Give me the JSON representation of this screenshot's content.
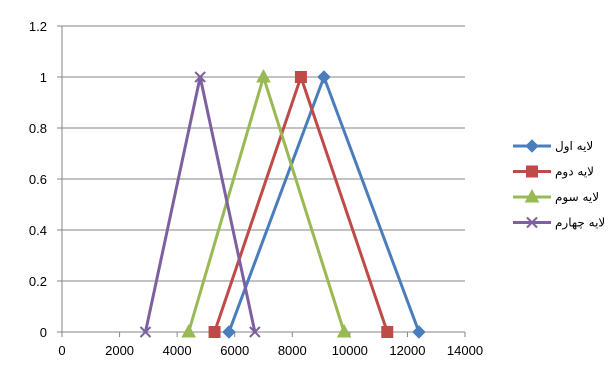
{
  "chart_data": {
    "type": "line",
    "title": "",
    "xlabel": "",
    "ylabel": "",
    "xlim": [
      0,
      14000
    ],
    "ylim": [
      0,
      1.2
    ],
    "x_ticks": [
      "0",
      "2000",
      "4000",
      "6000",
      "8000",
      "10000",
      "12000",
      "14000"
    ],
    "y_ticks": [
      "0",
      "0.2",
      "0.4",
      "0.6",
      "0.8",
      "1",
      "1.2"
    ],
    "grid": "horizontal",
    "legend_position": "right",
    "series": [
      {
        "name": "لایه اول",
        "color": "#4a7ebb",
        "marker": "diamond",
        "points": [
          [
            5800,
            0
          ],
          [
            9100,
            1
          ],
          [
            12400,
            0
          ]
        ]
      },
      {
        "name": "لایه دوم",
        "color": "#be4b48",
        "marker": "square",
        "points": [
          [
            5300,
            0
          ],
          [
            8300,
            1
          ],
          [
            11300,
            0
          ]
        ]
      },
      {
        "name": "لایه سوم",
        "color": "#98b954",
        "marker": "triangle",
        "points": [
          [
            4400,
            0
          ],
          [
            7000,
            1
          ],
          [
            9800,
            0
          ]
        ]
      },
      {
        "name": "لایه چهارم",
        "color": "#7d60a0",
        "marker": "x",
        "points": [
          [
            2900,
            0
          ],
          [
            4800,
            1
          ],
          [
            6700,
            0
          ]
        ]
      }
    ]
  }
}
